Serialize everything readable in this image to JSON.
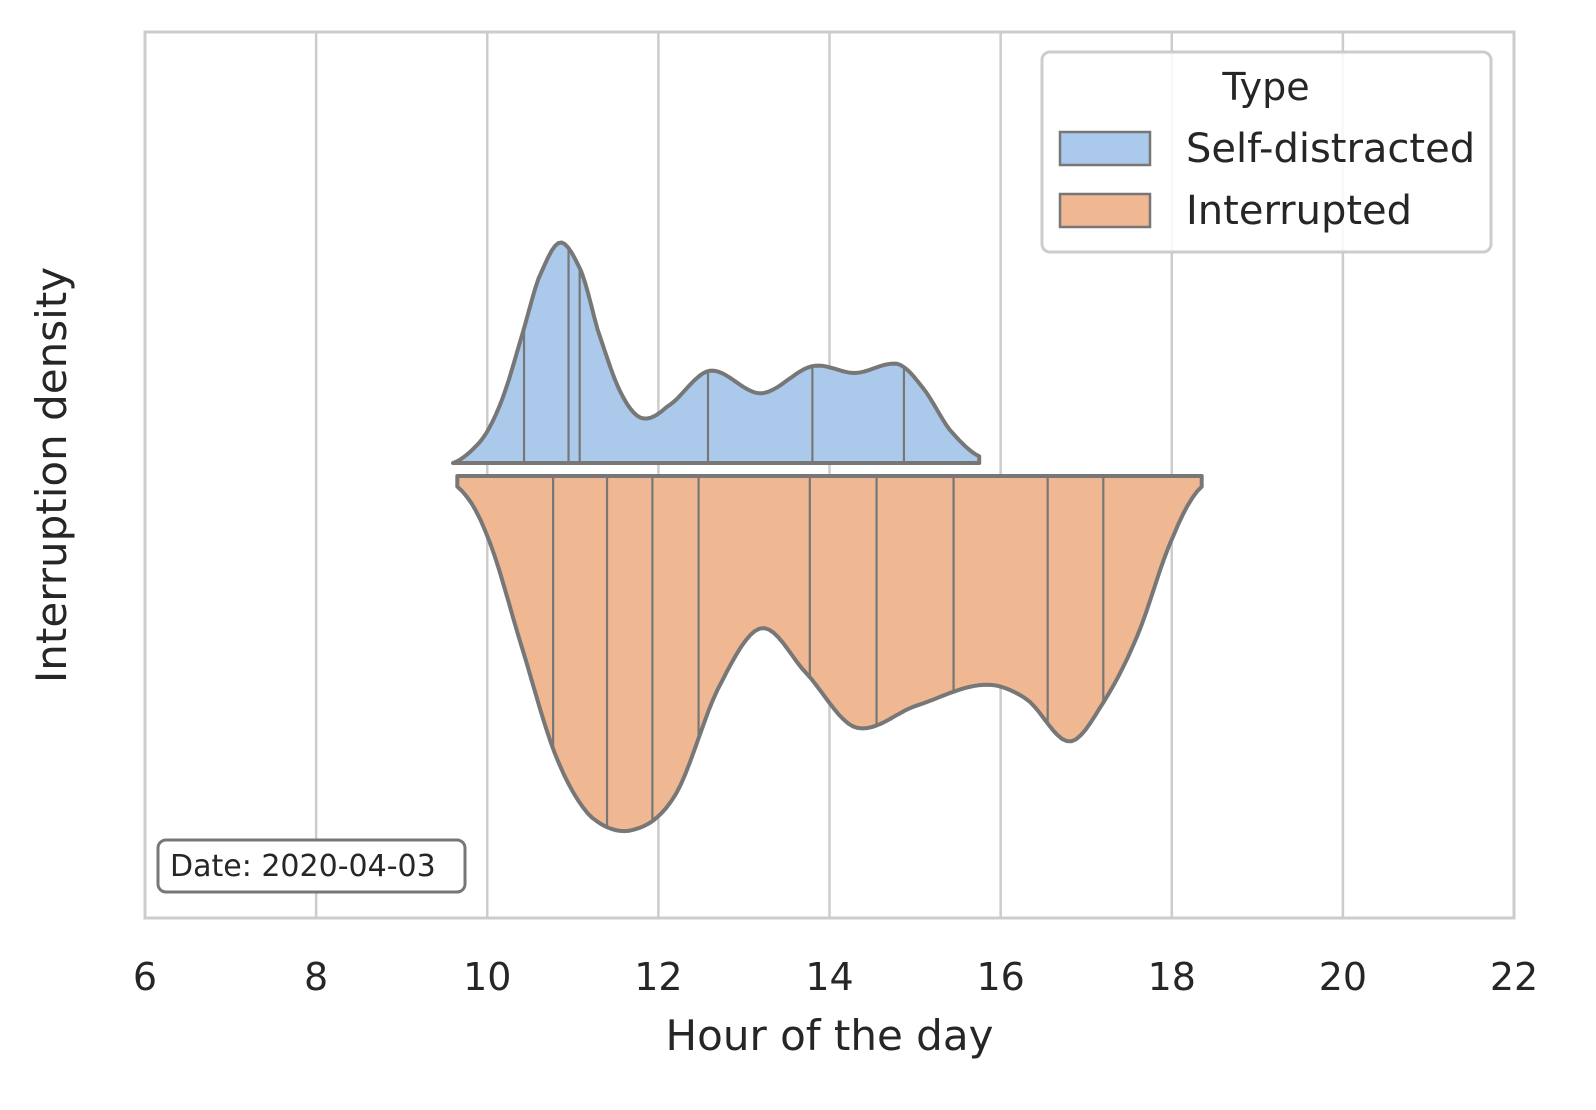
{
  "chart_data": {
    "type": "violin",
    "title": "",
    "xlabel": "Hour of the day",
    "ylabel": "Interruption density",
    "xlim": [
      6,
      22
    ],
    "x_ticks": [
      6,
      8,
      10,
      12,
      14,
      16,
      18,
      20,
      22
    ],
    "x_tick_labels": [
      "6",
      "8",
      "10",
      "12",
      "14",
      "16",
      "18",
      "20",
      "22"
    ],
    "grid": true,
    "annotation": "Date: 2020-04-03",
    "legend": {
      "title": "Type",
      "placement": "top-right",
      "entries": [
        "Self-distracted",
        "Interrupted"
      ]
    },
    "series": [
      {
        "name": "Self-distracted",
        "side": "upper",
        "color": "#abc9ea",
        "x_range": [
          9.6,
          15.75
        ],
        "observations": [
          10.43,
          10.95,
          11.08,
          12.58,
          13.8,
          14.87
        ],
        "density_curve": [
          [
            9.6,
            0.0
          ],
          [
            9.8,
            0.05
          ],
          [
            10.0,
            0.14
          ],
          [
            10.2,
            0.31
          ],
          [
            10.4,
            0.56
          ],
          [
            10.6,
            0.82
          ],
          [
            10.85,
            0.98
          ],
          [
            11.1,
            0.85
          ],
          [
            11.3,
            0.58
          ],
          [
            11.55,
            0.32
          ],
          [
            11.8,
            0.2
          ],
          [
            12.1,
            0.25
          ],
          [
            12.6,
            0.41
          ],
          [
            13.2,
            0.31
          ],
          [
            13.8,
            0.43
          ],
          [
            14.3,
            0.4
          ],
          [
            14.8,
            0.44
          ],
          [
            15.1,
            0.33
          ],
          [
            15.4,
            0.15
          ],
          [
            15.75,
            0.03
          ]
        ]
      },
      {
        "name": "Interrupted",
        "side": "lower",
        "color": "#efb792",
        "x_range": [
          9.65,
          18.35
        ],
        "observations": [
          10.77,
          11.4,
          11.93,
          12.47,
          13.77,
          14.55,
          15.45,
          16.55,
          17.2
        ],
        "density_curve": [
          [
            9.65,
            0.03
          ],
          [
            10.0,
            0.17
          ],
          [
            10.4,
            0.48
          ],
          [
            10.8,
            0.79
          ],
          [
            11.2,
            0.96
          ],
          [
            11.7,
            1.0
          ],
          [
            12.2,
            0.9
          ],
          [
            12.7,
            0.6
          ],
          [
            13.2,
            0.43
          ],
          [
            13.7,
            0.55
          ],
          [
            14.3,
            0.71
          ],
          [
            15.0,
            0.65
          ],
          [
            15.8,
            0.59
          ],
          [
            16.3,
            0.63
          ],
          [
            16.8,
            0.75
          ],
          [
            17.2,
            0.64
          ],
          [
            17.6,
            0.45
          ],
          [
            18.0,
            0.18
          ],
          [
            18.35,
            0.03
          ]
        ]
      }
    ]
  },
  "colors": {
    "grid": "#cccccc",
    "outline": "#777777",
    "text": "#262626"
  }
}
